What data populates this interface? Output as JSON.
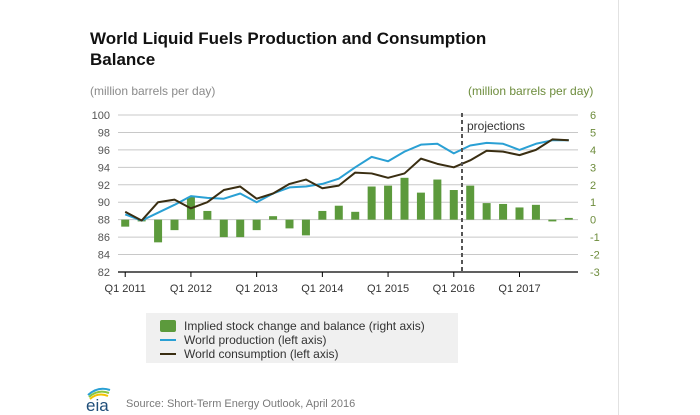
{
  "page": {
    "title": "World Liquid Fuels Production and Consumption Balance",
    "left_unit": "(million barrels per day)",
    "right_unit": "(million barrels per day)",
    "source": "Source: Short-Term Energy Outlook, April 2016",
    "logo_text": "eia"
  },
  "colors": {
    "bar": "#5c9a3c",
    "production": "#2aa0d4",
    "consumption": "#3a2e12",
    "right_axis_text": "#6d8c3c",
    "grid": "#c8c8c8",
    "projection_line": "#555555"
  },
  "chart_data": {
    "type": "bar+line",
    "title": "World Liquid Fuels Production and Consumption Balance",
    "xlabel": "",
    "ylabel_left": "(million barrels per day)",
    "ylabel_right": "(million barrels per day)",
    "ylim_left": [
      82,
      100
    ],
    "yticks_left": [
      82,
      84,
      86,
      88,
      90,
      92,
      94,
      96,
      98,
      100
    ],
    "ylim_right": [
      -3,
      6
    ],
    "yticks_right": [
      -3,
      -2,
      -1,
      0,
      1,
      2,
      3,
      4,
      5,
      6
    ],
    "x_tick_labels": [
      "Q1 2011",
      "Q1 2012",
      "Q1 2013",
      "Q1 2014",
      "Q1 2015",
      "Q1 2016",
      "Q1 2017"
    ],
    "grid": true,
    "legend_position": "bottom",
    "annotation": {
      "text": "projections",
      "after_category": "Q1 2016"
    },
    "categories": [
      "Q1 2011",
      "Q2 2011",
      "Q3 2011",
      "Q4 2011",
      "Q1 2012",
      "Q2 2012",
      "Q3 2012",
      "Q4 2012",
      "Q1 2013",
      "Q2 2013",
      "Q3 2013",
      "Q4 2013",
      "Q1 2014",
      "Q2 2014",
      "Q3 2014",
      "Q4 2014",
      "Q1 2015",
      "Q2 2015",
      "Q3 2015",
      "Q4 2015",
      "Q1 2016",
      "Q2 2016",
      "Q3 2016",
      "Q4 2016",
      "Q1 2017",
      "Q2 2017",
      "Q3 2017",
      "Q4 2017"
    ],
    "series": [
      {
        "name": "Implied stock change and balance (right axis)",
        "type": "bar",
        "axis": "right",
        "values": [
          -0.4,
          -0.1,
          -1.3,
          -0.6,
          1.3,
          0.5,
          -1.0,
          -1.0,
          -0.6,
          0.2,
          -0.5,
          -0.9,
          0.5,
          0.8,
          0.45,
          1.9,
          1.95,
          2.4,
          1.55,
          2.3,
          1.7,
          1.95,
          0.95,
          0.9,
          0.7,
          0.85,
          -0.1,
          0.1
        ]
      },
      {
        "name": "World production (left axis)",
        "type": "line",
        "axis": "left",
        "values": [
          88.6,
          87.9,
          88.8,
          89.7,
          90.7,
          90.5,
          90.4,
          91.0,
          90.0,
          91.0,
          91.7,
          91.8,
          92.1,
          92.7,
          94.0,
          95.2,
          94.7,
          95.8,
          96.6,
          96.7,
          95.6,
          96.5,
          96.8,
          96.7,
          96.0,
          96.7,
          97.1,
          97.1
        ]
      },
      {
        "name": "World consumption (left axis)",
        "type": "line",
        "axis": "left",
        "values": [
          88.9,
          87.9,
          90.0,
          90.3,
          89.3,
          90.0,
          91.4,
          91.8,
          90.4,
          91.0,
          92.1,
          92.6,
          91.6,
          91.9,
          93.4,
          93.3,
          92.8,
          93.3,
          95.0,
          94.4,
          94.0,
          94.8,
          95.9,
          95.8,
          95.4,
          96.0,
          97.2,
          97.1
        ]
      }
    ]
  },
  "legend": [
    {
      "label": "Implied stock change and balance (right axis)",
      "kind": "bar"
    },
    {
      "label": "World production (left axis)",
      "kind": "line"
    },
    {
      "label": "World consumption (left axis)",
      "kind": "line"
    }
  ]
}
